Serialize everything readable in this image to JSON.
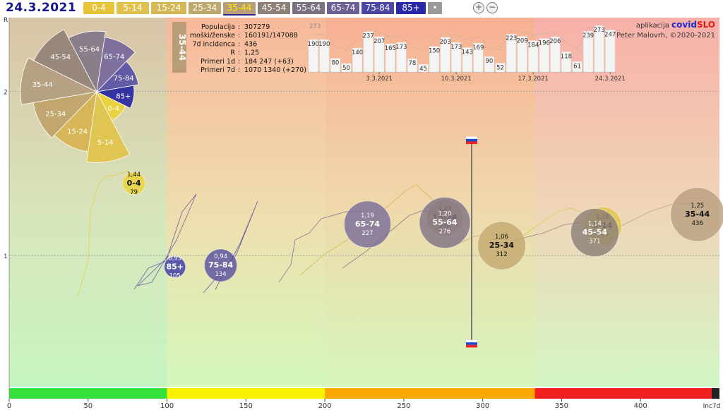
{
  "header": {
    "date": "24.3.2021",
    "age_buttons": [
      {
        "label": "0-4",
        "color": "#e8c43a"
      },
      {
        "label": "5-14",
        "color": "#e2c24e"
      },
      {
        "label": "15-24",
        "color": "#d6b856"
      },
      {
        "label": "25-34",
        "color": "#bea86c"
      },
      {
        "label": "35-44",
        "color": "#b89e78"
      },
      {
        "label": "45-54",
        "color": "#8e8076"
      },
      {
        "label": "55-64",
        "color": "#7a707e"
      },
      {
        "label": "65-74",
        "color": "#6c6094"
      },
      {
        "label": "75-84",
        "color": "#4c46a2"
      },
      {
        "label": "85+",
        "color": "#2a28a8"
      },
      {
        "label": "•",
        "color": "#999999"
      }
    ],
    "selected": "35-44",
    "zoom_in": "+",
    "zoom_out": "−"
  },
  "info": {
    "tag": "35-44",
    "rows": [
      {
        "k": "Populacija",
        "v": "307279"
      },
      {
        "k": "moški/ženske",
        "v": "160191/147088"
      },
      {
        "k": "7d incidenca",
        "v": "436"
      },
      {
        "k": "R",
        "v": "1,25"
      },
      {
        "k": "Primeri 1d",
        "v": "184 247 (+63)"
      },
      {
        "k": "Primeri 7d",
        "v": "1070 1340 (+270)"
      }
    ]
  },
  "credit": {
    "prefix": "aplikacija",
    "brand1": "covid",
    "brand2": "SLO",
    "author": "Peter Malovrh, ©2020-2021"
  },
  "chart_data": [
    {
      "type": "bar",
      "title": "Primeri 1d",
      "values": [
        190,
        190,
        80,
        50,
        140,
        237,
        207,
        165,
        173,
        78,
        45,
        150,
        203,
        173,
        143,
        169,
        90,
        52,
        223,
        209,
        184,
        196,
        206,
        118,
        61,
        239,
        273,
        247
      ],
      "max_label": "273",
      "date_labels": [
        "3.3.2021",
        "10.3.2021",
        "17.3.2021",
        "24.3.2021"
      ],
      "bar_color": "#f4f4f4"
    },
    {
      "type": "scatter",
      "xlabel": "",
      "ylabel": "R",
      "xlim": [
        0,
        450
      ],
      "ylim": [
        0.2,
        2.45
      ],
      "x_ticks": [
        "0",
        "50",
        "100",
        "150",
        "200",
        "250",
        "300",
        "350",
        "400"
      ],
      "x_end_label": "Inc7d",
      "y_ticks": [
        "1",
        "2"
      ],
      "zones": [
        {
          "from": 0,
          "to": 100,
          "color": "#35e03a"
        },
        {
          "from": 100,
          "to": 200,
          "color": "#f8f200"
        },
        {
          "from": 200,
          "to": 333,
          "color": "#f8a800"
        },
        {
          "from": 333,
          "to": 450,
          "color": "#f02020"
        }
      ],
      "bubbles": [
        {
          "label": "0-4",
          "r": "1,44",
          "inc": "79",
          "x": 79,
          "y": 1.44,
          "rad": 16,
          "color": "#ecd23a"
        },
        {
          "label": "85+",
          "r": "0,93",
          "inc": "105",
          "x": 105,
          "y": 0.93,
          "rad": 15,
          "color": "#3c3aa8"
        },
        {
          "label": "75-84",
          "r": "0,94",
          "inc": "134",
          "x": 134,
          "y": 0.94,
          "rad": 23,
          "color": "#5850a0"
        },
        {
          "label": "65-74",
          "r": "1,19",
          "inc": "227",
          "x": 227,
          "y": 1.19,
          "rad": 33,
          "color": "#7a6e98"
        },
        {
          "label": "15-24",
          "r": "1,23",
          "inc": "276",
          "x": 276,
          "y": 1.23,
          "rad": 26,
          "color": "#c8aa58"
        },
        {
          "label": "55-64",
          "r": "1,20",
          "inc": "276",
          "x": 276,
          "y": 1.2,
          "rad": 36,
          "color": "#807488"
        },
        {
          "label": "25-34",
          "r": "1,06",
          "inc": "312",
          "x": 312,
          "y": 1.06,
          "rad": 34,
          "color": "#c4aa70"
        },
        {
          "label": "5-14",
          "r": "1,18",
          "inc": "376",
          "x": 376,
          "y": 1.18,
          "rad": 27,
          "color": "#e2c64a"
        },
        {
          "label": "45-54",
          "r": "1,14",
          "inc": "371",
          "x": 371,
          "y": 1.14,
          "rad": 34,
          "color": "#8e8078"
        },
        {
          "label": "35-44",
          "r": "1,25",
          "inc": "436",
          "x": 436,
          "y": 1.25,
          "rad": 38,
          "color": "#b8a080"
        }
      ],
      "slovenia": {
        "x": 293,
        "top": 1.7,
        "bottom": 0.46
      }
    },
    {
      "type": "pie",
      "title": "polar",
      "slices": [
        {
          "label": "0-4",
          "value": 79,
          "color": "#ecd23a"
        },
        {
          "label": "5-14",
          "value": 376,
          "color": "#e2c44e"
        },
        {
          "label": "15-24",
          "value": 276,
          "color": "#d6b452"
        },
        {
          "label": "25-34",
          "value": 312,
          "color": "#c0a46c"
        },
        {
          "label": "35-44",
          "value": 436,
          "color": "#b49e80"
        },
        {
          "label": "45-54",
          "value": 371,
          "color": "#958478"
        },
        {
          "label": "55-64",
          "value": 276,
          "color": "#857a88"
        },
        {
          "label": "65-74",
          "value": 227,
          "color": "#7a6a9c"
        },
        {
          "label": "75-84",
          "value": 134,
          "color": "#5e54a6"
        },
        {
          "label": "85+",
          "value": 105,
          "color": "#2c2aa0"
        }
      ]
    }
  ]
}
